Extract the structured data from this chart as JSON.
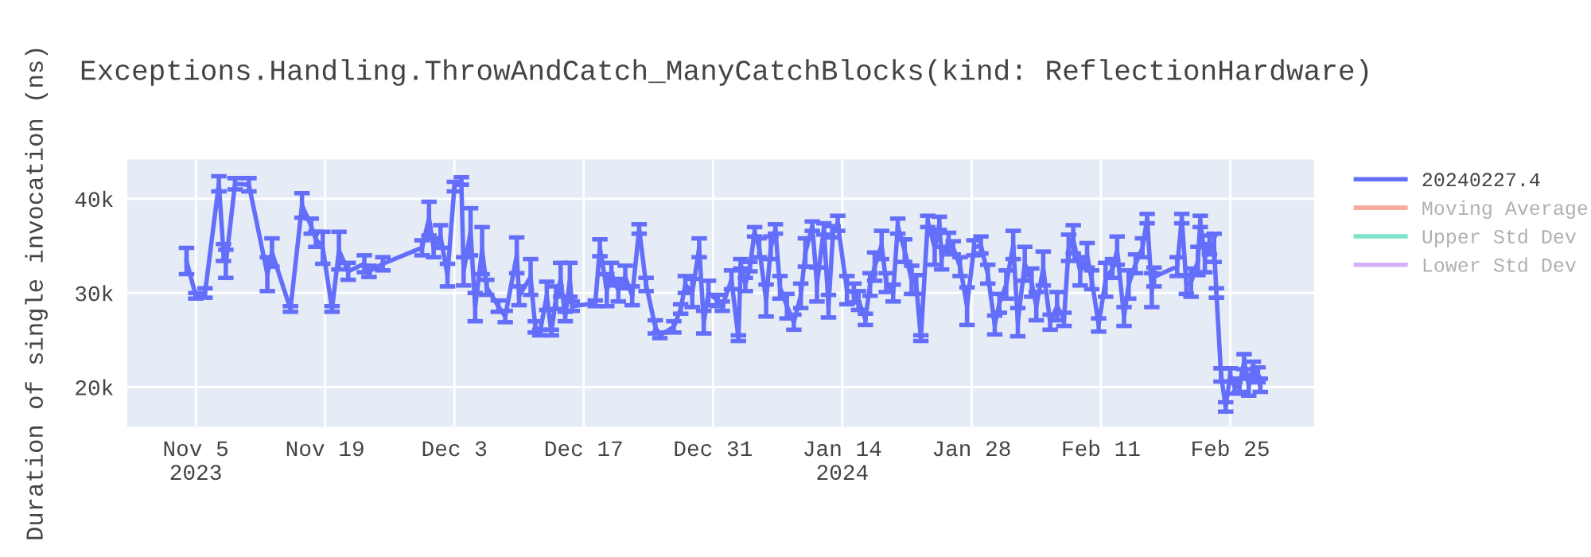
{
  "chart_data": {
    "type": "line",
    "title": "Exceptions.Handling.ThrowAndCatch_ManyCatchBlocks(kind: ReflectionHardware)",
    "ylabel": "Duration of single invocation (ns)",
    "xlim": [
      "2023-10-28T14:00",
      "2024-03-05T02:00"
    ],
    "xticks": [
      {
        "value": "2023-11-05",
        "label": "Nov 5\n2023"
      },
      {
        "value": "2023-11-19",
        "label": "Nov 19"
      },
      {
        "value": "2023-12-03",
        "label": "Dec 3"
      },
      {
        "value": "2023-12-17",
        "label": "Dec 17"
      },
      {
        "value": "2023-12-31",
        "label": "Dec 31"
      },
      {
        "value": "2024-01-14",
        "label": "Jan 14\n2024"
      },
      {
        "value": "2024-01-28",
        "label": "Jan 28"
      },
      {
        "value": "2024-02-11",
        "label": "Feb 11"
      },
      {
        "value": "2024-02-25",
        "label": "Feb 25"
      }
    ],
    "ylim": [
      15800,
      44200
    ],
    "yticks": [
      {
        "value": 20000,
        "label": "20k"
      },
      {
        "value": 30000,
        "label": "30k"
      },
      {
        "value": 40000,
        "label": "40k"
      }
    ],
    "grid": true,
    "legend": "top right",
    "marker": "none",
    "line_style": "solid",
    "series": [
      {
        "name": "20240227.4",
        "color": "#636efa",
        "x": [
          "2023-11-04T00:00",
          "2023-11-05T00:00",
          "2023-11-06T00:00",
          "2023-11-07T12:00",
          "2023-11-08T00:00",
          "2023-11-08T06:00",
          "2023-11-09T06:00",
          "2023-11-10T18:00",
          "2023-11-12T18:00",
          "2023-11-13T06:00",
          "2023-11-15T06:00",
          "2023-11-16T12:00",
          "2023-11-17T12:00",
          "2023-11-18T00:00",
          "2023-11-18T18:00",
          "2023-11-19T18:00",
          "2023-11-20T12:00",
          "2023-11-21T12:00",
          "2023-11-23T06:00",
          "2023-11-23T18:00",
          "2023-11-25T06:00",
          "2023-11-29T12:00",
          "2023-11-30T06:00",
          "2023-11-30T18:00",
          "2023-12-01T12:00",
          "2023-12-02T06:00",
          "2023-12-03T00:00",
          "2023-12-03T18:00",
          "2023-12-04T00:00",
          "2023-12-04T18:00",
          "2023-12-05T06:00",
          "2023-12-06T00:00",
          "2023-12-06T12:00",
          "2023-12-07T18:00",
          "2023-12-08T12:00",
          "2023-12-09T18:00",
          "2023-12-10T00:00",
          "2023-12-11T06:00",
          "2023-12-11T18:00",
          "2023-12-12T06:00",
          "2023-12-13T00:00",
          "2023-12-13T12:00",
          "2023-12-14T00:00",
          "2023-12-14T12:00",
          "2023-12-15T00:00",
          "2023-12-15T12:00",
          "2023-12-15T18:00",
          "2023-12-18T06:00",
          "2023-12-18T18:00",
          "2023-12-19T12:00",
          "2023-12-20T00:00",
          "2023-12-20T18:00",
          "2023-12-21T12:00",
          "2023-12-22T06:00",
          "2023-12-23T00:00",
          "2023-12-23T18:00",
          "2023-12-24T18:00",
          "2023-12-25T06:00",
          "2023-12-26T18:00",
          "2023-12-27T12:00",
          "2023-12-28T00:00",
          "2023-12-28T18:00",
          "2023-12-29T12:00",
          "2023-12-30T00:00",
          "2023-12-30T12:00",
          "2023-12-31T12:00",
          "2024-01-01T00:00",
          "2024-01-02T00:00",
          "2024-01-02T18:00",
          "2024-01-03T00:00",
          "2024-01-03T12:00",
          "2024-01-04T00:00",
          "2024-01-04T12:00",
          "2024-01-05T00:00",
          "2024-01-05T18:00",
          "2024-01-06T06:00",
          "2024-01-06T18:00",
          "2024-01-07T06:00",
          "2024-01-08T00:00",
          "2024-01-08T18:00",
          "2024-01-09T12:00",
          "2024-01-10T00:00",
          "2024-01-10T18:00",
          "2024-01-11T06:00",
          "2024-01-12T00:00",
          "2024-01-12T12:00",
          "2024-01-13T00:00",
          "2024-01-13T12:00",
          "2024-01-14T12:00",
          "2024-01-15T06:00",
          "2024-01-15T18:00",
          "2024-01-16T12:00",
          "2024-01-17T00:00",
          "2024-01-17T12:00",
          "2024-01-18T06:00",
          "2024-01-18T18:00",
          "2024-01-19T12:00",
          "2024-01-20T00:00",
          "2024-01-20T18:00",
          "2024-01-21T12:00",
          "2024-01-22T00:00",
          "2024-01-22T12:00",
          "2024-01-23T06:00",
          "2024-01-24T00:00",
          "2024-01-24T12:00",
          "2024-01-24T18:00",
          "2024-01-25T12:00",
          "2024-01-26T00:00",
          "2024-01-26T18:00",
          "2024-01-27T12:00",
          "2024-01-28T06:00",
          "2024-01-29T00:00",
          "2024-01-29T18:00",
          "2024-01-30T12:00",
          "2024-01-31T00:00",
          "2024-01-31T18:00",
          "2024-02-01T12:00",
          "2024-02-02T00:00",
          "2024-02-02T18:00",
          "2024-02-03T12:00",
          "2024-02-04T00:00",
          "2024-02-04T18:00",
          "2024-02-05T12:00",
          "2024-02-06T06:00",
          "2024-02-07T00:00",
          "2024-02-07T12:00",
          "2024-02-08T00:00",
          "2024-02-08T18:00",
          "2024-02-09T12:00",
          "2024-02-10T00:00",
          "2024-02-10T18:00",
          "2024-02-11T12:00",
          "2024-02-12T06:00",
          "2024-02-12T18:00",
          "2024-02-13T12:00",
          "2024-02-14T00:00",
          "2024-02-14T18:00",
          "2024-02-15T12:00",
          "2024-02-16T00:00",
          "2024-02-16T12:00",
          "2024-02-16T18:00",
          "2024-02-19T06:00",
          "2024-02-19T18:00",
          "2024-02-20T06:00",
          "2024-02-20T18:00",
          "2024-02-21T12:00",
          "2024-02-21T18:00",
          "2024-02-22T06:00",
          "2024-02-22T18:00",
          "2024-02-23T06:00",
          "2024-02-23T12:00",
          "2024-02-24T00:00",
          "2024-02-24T12:00",
          "2024-02-25T00:00",
          "2024-02-25T12:00",
          "2024-02-26T00:00",
          "2024-02-26T12:00",
          "2024-02-27T00:00",
          "2024-02-27T12:00",
          "2024-02-28T00:00",
          "2024-02-28T06:00"
        ],
        "values": [
          33400,
          29700,
          30000,
          41600,
          34300,
          33100,
          41600,
          41500,
          32000,
          34300,
          28300,
          39300,
          37100,
          35700,
          34800,
          28300,
          34500,
          32300,
          33100,
          32300,
          33100,
          34800,
          37900,
          34800,
          36000,
          31900,
          41300,
          41900,
          32300,
          36500,
          28500,
          34500,
          30600,
          28600,
          27500,
          34000,
          29700,
          31700,
          26400,
          25800,
          29700,
          25800,
          29500,
          31400,
          27500,
          31400,
          28600,
          28900,
          34800,
          30300,
          32000,
          30300,
          31700,
          29700,
          36800,
          30900,
          26400,
          25500,
          26400,
          28300,
          30900,
          30000,
          34800,
          26900,
          30000,
          29200,
          28600,
          31400,
          25200,
          33100,
          30900,
          32800,
          36500,
          34800,
          29200,
          34800,
          36800,
          30600,
          28600,
          26900,
          29700,
          34300,
          37100,
          30900,
          36800,
          28600,
          36500,
          37400,
          30300,
          30000,
          29200,
          27200,
          30900,
          32800,
          35100,
          31100,
          30000,
          37100,
          34500,
          31400,
          30900,
          25200,
          37600,
          34800,
          37400,
          33700,
          35400,
          34800,
          32800,
          28600,
          34800,
          35100,
          32000,
          26600,
          28900,
          30900,
          35100,
          26900,
          33100,
          31100,
          28600,
          32600,
          26900,
          28600,
          27200,
          34800,
          35700,
          32300,
          34000,
          31400,
          26600,
          31400,
          32600,
          34500,
          27500,
          30900,
          33100,
          34800,
          37900,
          30300,
          31700,
          32800,
          37900,
          30900,
          31100,
          33400,
          37600,
          33700,
          35100,
          34800,
          30000,
          21300,
          17900,
          21300,
          19900,
          20200,
          22700,
          20200,
          21900,
          21300,
          20200
        ],
        "errors": [
          1400,
          300,
          500,
          800,
          900,
          1500,
          600,
          700,
          1800,
          1500,
          300,
          1300,
          800,
          800,
          1700,
          300,
          2000,
          900,
          900,
          600,
          700,
          800,
          1800,
          1000,
          1200,
          1200,
          500,
          400,
          1500,
          2500,
          1500,
          2500,
          800,
          600,
          600,
          1900,
          1000,
          1900,
          600,
          300,
          1500,
          300,
          1200,
          1800,
          500,
          1800,
          500,
          300,
          900,
          1700,
          1200,
          1200,
          1200,
          1000,
          500,
          700,
          700,
          300,
          600,
          500,
          900,
          1500,
          1000,
          1200,
          1300,
          600,
          500,
          1000,
          300,
          500,
          700,
          500,
          500,
          1000,
          1700,
          1200,
          500,
          1200,
          1300,
          800,
          1300,
          1500,
          500,
          1800,
          600,
          1200,
          600,
          800,
          1500,
          1000,
          1000,
          600,
          1200,
          1500,
          1500,
          1000,
          900,
          800,
          1200,
          1500,
          1000,
          300,
          600,
          1800,
          700,
          1200,
          1000,
          700,
          1000,
          2000,
          800,
          900,
          1000,
          1000,
          1000,
          1500,
          1500,
          1500,
          1800,
          1500,
          1500,
          1800,
          800,
          1500,
          700,
          1400,
          1500,
          1500,
          1300,
          1000,
          700,
          1800,
          1000,
          1500,
          1000,
          1500,
          1000,
          1000,
          500,
          1800,
          1000,
          1000,
          500,
          1000,
          1500,
          1500,
          600,
          1500,
          1000,
          1500,
          500,
          700,
          500,
          700,
          600,
          700,
          800,
          1100,
          800,
          800,
          700
        ]
      },
      {
        "name": "Moving Average",
        "color": "#ef553b"
      },
      {
        "name": "Upper Std Dev",
        "color": "#00cc96"
      },
      {
        "name": "Lower Std Dev",
        "color": "#ab63fa"
      }
    ]
  }
}
